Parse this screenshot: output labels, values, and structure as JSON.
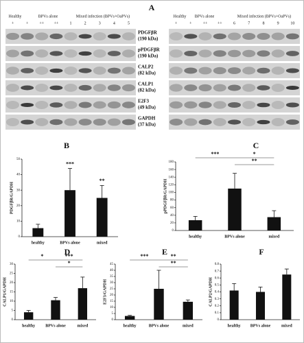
{
  "figure": {
    "panel_label": "A",
    "blots": [
      {
        "groups": [
          "Healthy",
          "BPVs alone",
          "Mixed infection (BPVs+OaPVs)"
        ],
        "lanes": [
          "+",
          "+",
          "++",
          "++",
          "1",
          "2",
          "3",
          "4",
          "5"
        ]
      },
      {
        "groups": [
          "Healthy",
          "BPVs alone",
          "Mixed infection (BPVs+OaPVs)"
        ],
        "lanes": [
          "+",
          "+",
          "++",
          "++",
          "6",
          "7",
          "8",
          "9",
          "10"
        ]
      }
    ],
    "bands": [
      {
        "name": "PDGFβR",
        "size": "(190 kDa)"
      },
      {
        "name": "pPDGFβR",
        "size": "(190 kDa)"
      },
      {
        "name": "CALP2",
        "size": "(82 kDa)"
      },
      {
        "name": "CALP1",
        "size": "(82 kDa)"
      },
      {
        "name": "E2F3",
        "size": "(49 kDa)"
      },
      {
        "name": "GAPDH",
        "size": "(37 kDa)"
      }
    ]
  },
  "chart_data": [
    {
      "type": "bar",
      "panel_label": "B",
      "y_label": "PDGFβR/GAPDH",
      "categories": [
        "healthy",
        "BPVs alone",
        "mixed"
      ],
      "values": [
        5.5,
        30,
        25
      ],
      "errors": [
        2.5,
        14,
        8
      ],
      "color": "#111111",
      "ylim": [
        0,
        50
      ],
      "yticks": [
        0,
        10,
        20,
        30,
        40,
        50
      ],
      "bar_labels": [
        null,
        "***",
        "**"
      ],
      "brackets": []
    },
    {
      "type": "bar",
      "panel_label": "C",
      "y_label": "pPDGFβR/GAPDH",
      "categories": [
        "healthy",
        "BPVs alone",
        "mixed"
      ],
      "values": [
        27,
        110,
        35
      ],
      "errors": [
        10,
        40,
        17
      ],
      "color": "#111111",
      "ylim": [
        0,
        180
      ],
      "yticks": [
        0,
        20,
        40,
        60,
        80,
        100,
        120,
        140,
        160,
        180
      ],
      "bar_labels": [
        null,
        null,
        null
      ],
      "brackets": [
        {
          "from": 0,
          "to": 1,
          "label": "***"
        },
        {
          "from": 1,
          "to": 2,
          "label": "*"
        },
        {
          "from": 1,
          "to": 2,
          "label": "**"
        }
      ]
    },
    {
      "type": "bar",
      "panel_label": "D",
      "y_label": "CALP1/GAPDH",
      "categories": [
        "healthy",
        "BPVs alone",
        "mixed"
      ],
      "values": [
        4,
        10.5,
        17
      ],
      "errors": [
        1,
        1.5,
        6
      ],
      "color": "#111111",
      "ylim": [
        0,
        30
      ],
      "yticks": [
        0,
        5,
        10,
        15,
        20,
        25,
        30
      ],
      "bar_labels": [
        null,
        null,
        null
      ],
      "brackets": [
        {
          "from": 0,
          "to": 1,
          "label": "*"
        },
        {
          "from": 1,
          "to": 2,
          "label": "***"
        },
        {
          "from": 1,
          "to": 2,
          "label": "*"
        }
      ]
    },
    {
      "type": "bar",
      "panel_label": "E",
      "y_label": "E2F3/GAPDH",
      "categories": [
        "healthy",
        "BPVs alone",
        "mixed"
      ],
      "values": [
        3,
        25,
        14.5
      ],
      "errors": [
        0.5,
        15,
        1.5
      ],
      "color": "#111111",
      "ylim": [
        0,
        45
      ],
      "yticks": [
        0,
        5,
        10,
        15,
        20,
        25,
        30,
        35,
        40,
        45
      ],
      "bar_labels": [
        null,
        null,
        null
      ],
      "brackets": [
        {
          "from": 0,
          "to": 1,
          "label": "***"
        },
        {
          "from": 1,
          "to": 2,
          "label": "**"
        },
        {
          "from": 1,
          "to": 2,
          "label": "**"
        }
      ]
    },
    {
      "type": "bar",
      "panel_label": "F",
      "y_label": "CALP2/GAPDH",
      "categories": [
        "healthy",
        "BPVs alone",
        "mixed"
      ],
      "values": [
        0.42,
        0.4,
        0.65
      ],
      "errors": [
        0.1,
        0.07,
        0.08
      ],
      "color": "#111111",
      "ylim": [
        0,
        0.8
      ],
      "yticks": [
        0,
        0.1,
        0.2,
        0.3,
        0.4,
        0.5,
        0.6,
        0.7,
        0.8
      ],
      "bar_labels": [
        null,
        null,
        null
      ],
      "brackets": []
    }
  ]
}
